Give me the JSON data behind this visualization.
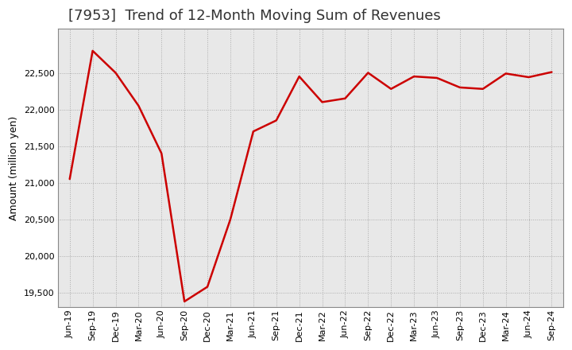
{
  "title": "[7953]  Trend of 12-Month Moving Sum of Revenues",
  "ylabel": "Amount (million yen)",
  "line_color": "#cc0000",
  "background_color": "#ffffff",
  "plot_bg_color": "#e8e8e8",
  "grid_color": "#aaaaaa",
  "ylim": [
    19300,
    23100
  ],
  "yticks": [
    19500,
    20000,
    20500,
    21000,
    21500,
    22000,
    22500
  ],
  "values": [
    21050,
    22800,
    22500,
    22050,
    21400,
    19380,
    19580,
    20500,
    21700,
    21850,
    22450,
    22100,
    22150,
    22500,
    22280,
    22450,
    22430,
    22300,
    22280,
    22490,
    22440,
    22510
  ],
  "xtick_labels": [
    "Jun-19",
    "Sep-19",
    "Dec-19",
    "Mar-20",
    "Jun-20",
    "Sep-20",
    "Dec-20",
    "Mar-21",
    "Jun-21",
    "Sep-21",
    "Dec-21",
    "Mar-22",
    "Jun-22",
    "Sep-22",
    "Dec-22",
    "Mar-23",
    "Jun-23",
    "Sep-23",
    "Dec-23",
    "Mar-24",
    "Jun-24",
    "Sep-24"
  ],
  "title_fontsize": 13,
  "label_fontsize": 9,
  "tick_fontsize": 8
}
